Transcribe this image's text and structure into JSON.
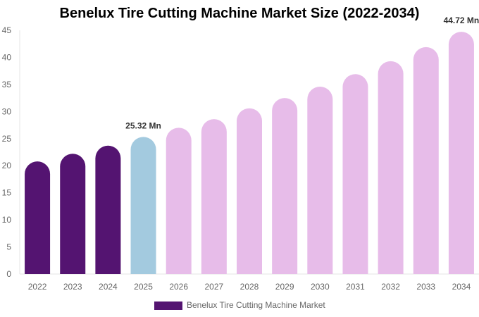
{
  "chart_data": {
    "type": "bar",
    "title": "Benelux Tire Cutting Machine Market Size (2022-2034)",
    "categories": [
      "2022",
      "2023",
      "2024",
      "2025",
      "2026",
      "2027",
      "2028",
      "2029",
      "2030",
      "2031",
      "2032",
      "2033",
      "2034"
    ],
    "series": [
      {
        "name": "Benelux Tire Cutting Machine Market",
        "values": [
          20.8,
          22.2,
          23.7,
          25.32,
          27.0,
          28.6,
          30.6,
          32.5,
          34.6,
          36.9,
          39.3,
          41.9,
          44.72
        ]
      }
    ],
    "bar_colors": [
      "#541471",
      "#541471",
      "#541471",
      "#a3cadf",
      "#e7bce9",
      "#e7bce9",
      "#e7bce9",
      "#e7bce9",
      "#e7bce9",
      "#e7bce9",
      "#e7bce9",
      "#e7bce9",
      "#e7bce9"
    ],
    "data_labels": [
      {
        "index": 3,
        "text": "25.32 Mn"
      },
      {
        "index": 12,
        "text": "44.72 Mn"
      }
    ],
    "yticks": [
      0,
      5,
      10,
      15,
      20,
      25,
      30,
      35,
      40,
      45
    ],
    "ylim": [
      0,
      45
    ],
    "xlabel": "",
    "ylabel": "",
    "grid": false,
    "legend": {
      "position": "bottom",
      "color": "#541471"
    }
  }
}
